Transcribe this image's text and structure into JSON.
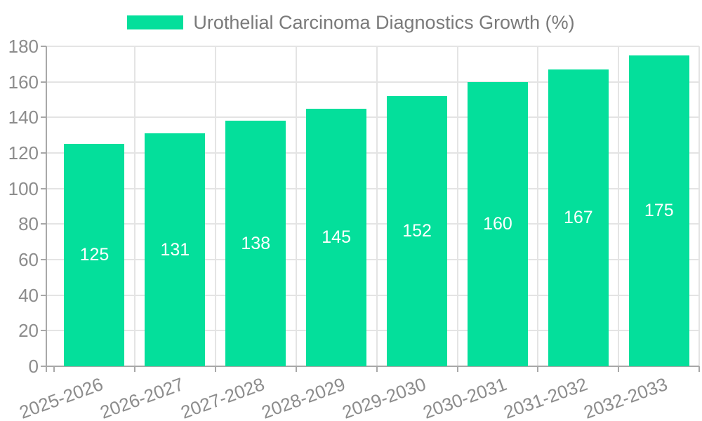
{
  "legend": {
    "items": [
      {
        "label": "Urothelial Carcinoma Diagnostics Growth (%)",
        "color": "#04DF9B"
      }
    ]
  },
  "chart_data": {
    "type": "bar",
    "title": "Urothelial Carcinoma Diagnostics Growth (%)",
    "categories": [
      "2025-2026",
      "2026-2027",
      "2027-2028",
      "2028-2029",
      "2029-2030",
      "2030-2031",
      "2031-2032",
      "2032-2033"
    ],
    "values": [
      125,
      131,
      138,
      145,
      152,
      160,
      167,
      175
    ],
    "value_labels": [
      "125",
      "131",
      "138",
      "145",
      "152",
      "160",
      "167",
      "175"
    ],
    "xlabel": "",
    "ylabel": "",
    "ylim": [
      0,
      180
    ],
    "ytick_interval": 20,
    "yticks": [
      0,
      20,
      40,
      60,
      80,
      100,
      120,
      140,
      160,
      180
    ],
    "legend_position": "top",
    "grid": true,
    "x_label_rotation_deg": -20,
    "colors": {
      "bar": "#04DF9B",
      "grid": "#e4e4e4",
      "axis": "#a8a8a8",
      "axis_label": "#8c8c8c",
      "legend_text": "#7a7a7a",
      "value_label": "#ffffff",
      "background": "#ffffff"
    }
  }
}
